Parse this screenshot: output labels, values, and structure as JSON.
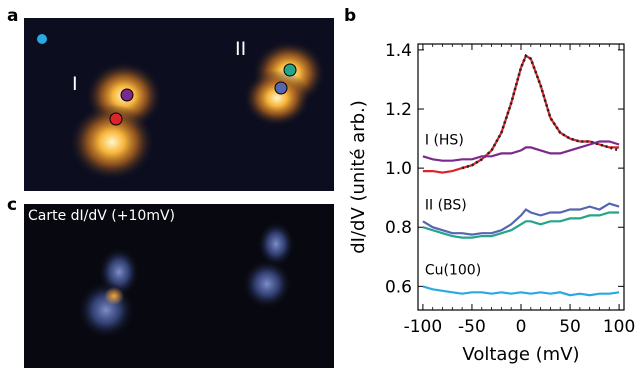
{
  "panels": {
    "a": {
      "label": "a",
      "molecule_labels": [
        "I",
        "II"
      ],
      "marker_colors": {
        "corner": "#2aa9e0",
        "I_top": "#7b2a8c",
        "I_bottom": "#d9252b",
        "II_top": "#24a48a",
        "II_bottom": "#5566b0"
      }
    },
    "b": {
      "label": "b"
    },
    "c": {
      "label": "c",
      "title": "Carte dI/dV (+10mV)"
    }
  },
  "chart_data": {
    "type": "line",
    "xlabel": "Voltage (mV)",
    "ylabel": "dI/dV  (unité arb.)",
    "xlim": [
      -105,
      105
    ],
    "ylim": [
      0.52,
      1.42
    ],
    "xticks": [
      -100,
      -50,
      0,
      50,
      100
    ],
    "yticks": [
      0.6,
      0.8,
      1.0,
      1.2,
      1.4
    ],
    "grid": false,
    "legend": "none",
    "annotations": [
      {
        "text": "I (HS)",
        "x": -98,
        "y": 1.08
      },
      {
        "text": "II (BS)",
        "x": -98,
        "y": 0.86
      },
      {
        "text": "Cu(100)",
        "x": -98,
        "y": 0.64
      }
    ],
    "series": [
      {
        "color": "#d9252b",
        "x": [
          -100,
          -90,
          -80,
          -70,
          -60,
          -50,
          -40,
          -30,
          -20,
          -10,
          0,
          5,
          10,
          20,
          30,
          40,
          50,
          60,
          70,
          80,
          90,
          100
        ],
        "y": [
          0.99,
          0.99,
          0.985,
          0.99,
          1.0,
          1.01,
          1.03,
          1.06,
          1.12,
          1.22,
          1.34,
          1.38,
          1.37,
          1.28,
          1.17,
          1.12,
          1.1,
          1.09,
          1.09,
          1.08,
          1.07,
          1.07
        ]
      },
      {
        "color": "#222222",
        "dashed": true,
        "x": [
          -60,
          -50,
          -40,
          -30,
          -20,
          -10,
          0,
          5,
          10,
          20,
          30,
          40,
          50,
          60,
          70,
          80,
          90,
          100
        ],
        "y": [
          1.0,
          1.01,
          1.03,
          1.06,
          1.12,
          1.22,
          1.34,
          1.38,
          1.37,
          1.28,
          1.17,
          1.12,
          1.1,
          1.09,
          1.09,
          1.08,
          1.07,
          1.06
        ]
      },
      {
        "color": "#7b2a8c",
        "x": [
          -100,
          -90,
          -80,
          -70,
          -60,
          -50,
          -40,
          -30,
          -20,
          -10,
          0,
          5,
          10,
          20,
          30,
          40,
          50,
          60,
          70,
          80,
          90,
          100
        ],
        "y": [
          1.04,
          1.03,
          1.025,
          1.025,
          1.03,
          1.03,
          1.04,
          1.04,
          1.05,
          1.05,
          1.06,
          1.07,
          1.07,
          1.06,
          1.05,
          1.05,
          1.06,
          1.07,
          1.08,
          1.09,
          1.09,
          1.08
        ]
      },
      {
        "color": "#5566b0",
        "x": [
          -100,
          -90,
          -80,
          -70,
          -60,
          -50,
          -40,
          -30,
          -20,
          -10,
          0,
          5,
          10,
          20,
          30,
          40,
          50,
          60,
          70,
          80,
          90,
          100
        ],
        "y": [
          0.82,
          0.8,
          0.79,
          0.78,
          0.78,
          0.775,
          0.78,
          0.78,
          0.79,
          0.81,
          0.84,
          0.86,
          0.85,
          0.84,
          0.85,
          0.85,
          0.86,
          0.86,
          0.87,
          0.86,
          0.88,
          0.87
        ]
      },
      {
        "color": "#24a48a",
        "x": [
          -100,
          -90,
          -80,
          -70,
          -60,
          -50,
          -40,
          -30,
          -20,
          -10,
          0,
          5,
          10,
          20,
          30,
          40,
          50,
          60,
          70,
          80,
          90,
          100
        ],
        "y": [
          0.8,
          0.79,
          0.78,
          0.77,
          0.765,
          0.765,
          0.77,
          0.77,
          0.78,
          0.79,
          0.81,
          0.82,
          0.82,
          0.81,
          0.82,
          0.82,
          0.83,
          0.83,
          0.84,
          0.84,
          0.85,
          0.85
        ]
      },
      {
        "color": "#2aa9e0",
        "x": [
          -100,
          -90,
          -80,
          -70,
          -60,
          -50,
          -40,
          -30,
          -20,
          -10,
          0,
          10,
          20,
          30,
          40,
          50,
          60,
          70,
          80,
          90,
          100
        ],
        "y": [
          0.6,
          0.59,
          0.585,
          0.58,
          0.575,
          0.58,
          0.58,
          0.575,
          0.58,
          0.575,
          0.58,
          0.575,
          0.58,
          0.575,
          0.58,
          0.57,
          0.575,
          0.57,
          0.575,
          0.575,
          0.58
        ]
      }
    ]
  }
}
